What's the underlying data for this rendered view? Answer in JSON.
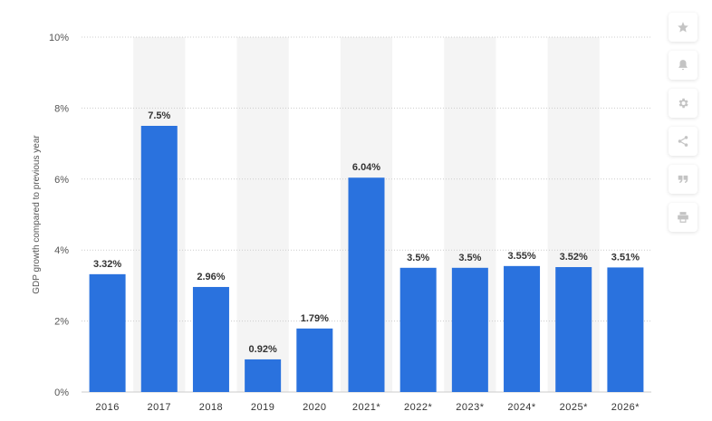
{
  "colors": {
    "bar": "#2a72de",
    "band": "#f4f4f4",
    "grid": "#cccccc",
    "toolbar_icon": "#c4c4c4"
  },
  "toolbar": {
    "items": [
      {
        "icon": "star-icon"
      },
      {
        "icon": "bell-icon"
      },
      {
        "icon": "gear-icon"
      },
      {
        "icon": "share-icon"
      },
      {
        "icon": "quote-icon"
      },
      {
        "icon": "print-icon"
      }
    ]
  },
  "chart_data": {
    "type": "bar",
    "ylabel": "GDP growth compared to previous year",
    "xlabel": "",
    "categories": [
      "2016",
      "2017",
      "2018",
      "2019",
      "2020",
      "2021*",
      "2022*",
      "2023*",
      "2024*",
      "2025*",
      "2026*"
    ],
    "values": [
      3.32,
      7.5,
      2.96,
      0.92,
      1.79,
      6.04,
      3.5,
      3.5,
      3.55,
      3.52,
      3.51
    ],
    "value_labels": [
      "3.32%",
      "7.5%",
      "2.96%",
      "0.92%",
      "1.79%",
      "6.04%",
      "3.5%",
      "3.5%",
      "3.55%",
      "3.52%",
      "3.51%"
    ],
    "ylim": [
      0,
      10
    ],
    "yticks": [
      0,
      2,
      4,
      6,
      8,
      10
    ],
    "ytick_labels": [
      "0%",
      "2%",
      "4%",
      "6%",
      "8%",
      "10%"
    ],
    "grid": true,
    "legend": "none"
  }
}
